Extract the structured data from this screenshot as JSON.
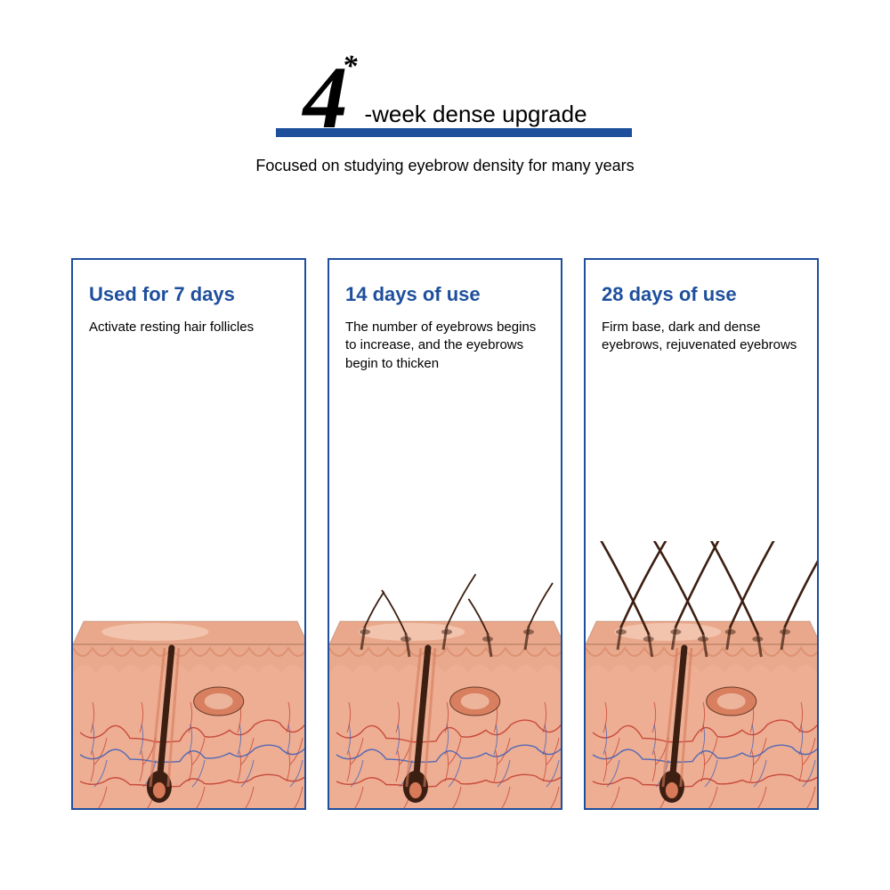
{
  "colors": {
    "accent": "#1e4f9c",
    "underline": "#1e4f9c",
    "border": "#1e4f9c",
    "text": "#000000",
    "skin_top": "#e9a88b",
    "skin_top_hl": "#f5cbb5",
    "skin_mid": "#f0b39a",
    "skin_base": "#e8a98d",
    "vein_red": "#c23a2a",
    "vein_blue": "#3a5db8",
    "hair": "#5a2f1d",
    "hair_dark": "#3d1f12",
    "follicle": "#d67a5a"
  },
  "header": {
    "number": "4",
    "asterisk": "*",
    "title": "-week dense upgrade",
    "subtitle": "Focused on studying eyebrow density for many years"
  },
  "panels": [
    {
      "title": "Used for 7 days",
      "desc": "Activate resting hair follicles",
      "hair_count": 0,
      "hair_len": 0
    },
    {
      "title": "14 days of use",
      "desc": "The number of eyebrows begins to increase, and the eyebrows begin to thicken",
      "hair_count": 5,
      "hair_len": 55
    },
    {
      "title": "28 days of use",
      "desc": "Firm base, dark and dense eyebrows, rejuvenated eyebrows",
      "hair_count": 7,
      "hair_len": 190
    }
  ]
}
